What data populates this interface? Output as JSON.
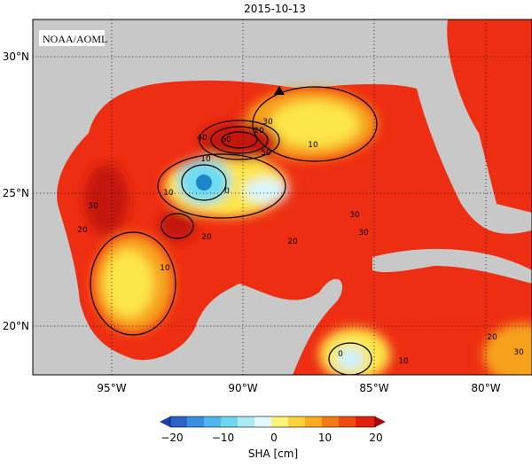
{
  "title": "2015-10-13",
  "source": "NOAA/AOML",
  "lat_labels": [
    "30°N",
    "25°N",
    "20°N"
  ],
  "lon_labels": [
    "95°W",
    "90°W",
    "85°W",
    "80°W"
  ],
  "colorbar": {
    "ticks": [
      "−20",
      "−10",
      "0",
      "10",
      "20"
    ],
    "label": "SHA [cm]"
  },
  "contour_labels": [
    "20",
    "30",
    "40",
    "50",
    "60",
    "10",
    "10",
    "0",
    "10",
    "30",
    "20",
    "30",
    "20",
    "10",
    "30",
    "20",
    "0",
    "10",
    "20",
    "30"
  ]
}
